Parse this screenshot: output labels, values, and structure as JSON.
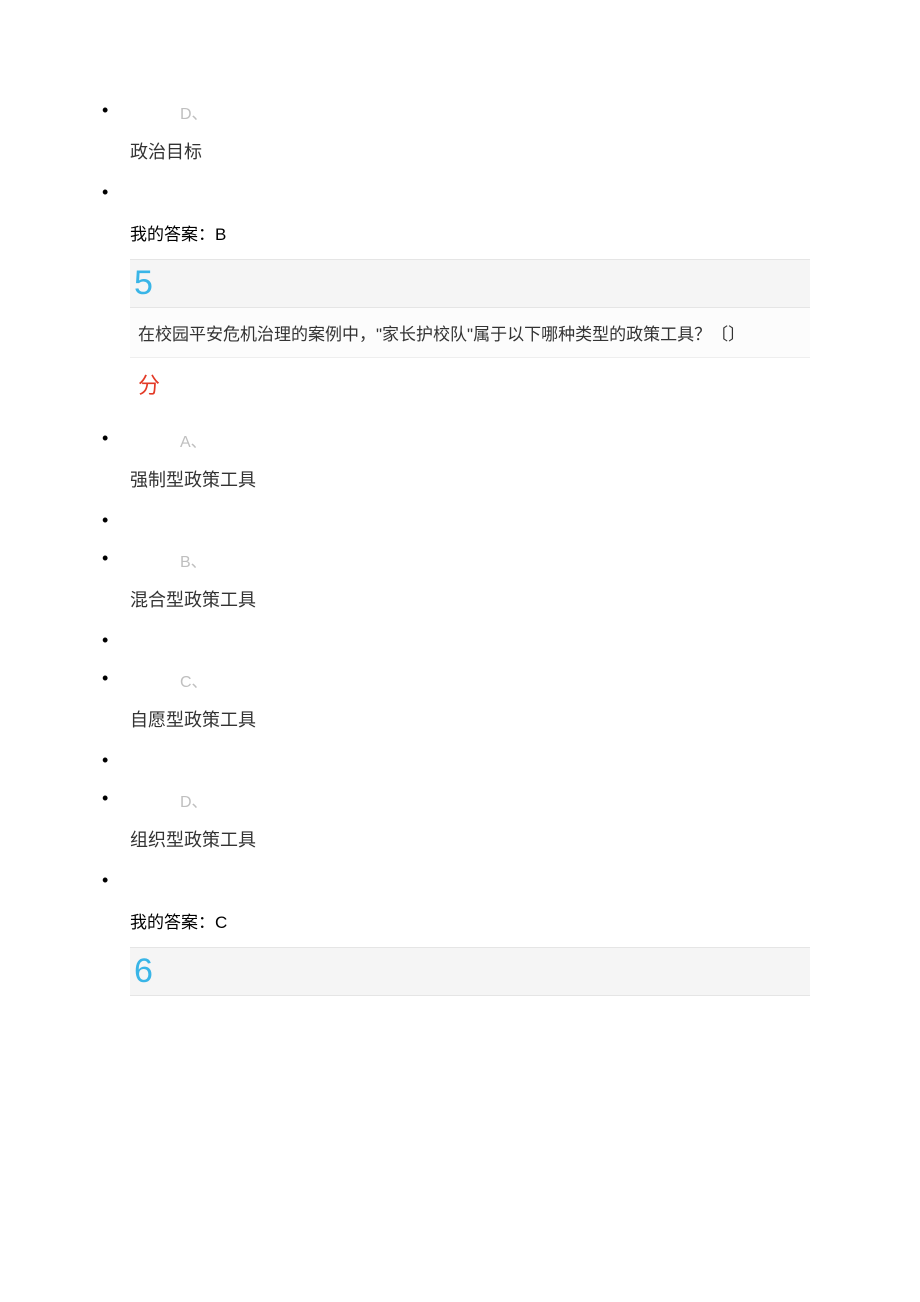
{
  "prev_tail": {
    "option_d": {
      "letter": "D、",
      "text": "政治目标"
    },
    "my_answer_label": "我的答案：",
    "my_answer_value": "B"
  },
  "q5": {
    "number": "5",
    "question": "在校园平安危机治理的案例中，\"家长护校队\"属于以下哪种类型的政策工具？〔〕",
    "score_word": "分",
    "options": {
      "a": {
        "letter": "A、",
        "text": "强制型政策工具"
      },
      "b": {
        "letter": "B、",
        "text": "混合型政策工具"
      },
      "c": {
        "letter": "C、",
        "text": "自愿型政策工具"
      },
      "d": {
        "letter": "D、",
        "text": "组织型政策工具"
      }
    },
    "my_answer_label": "我的答案：",
    "my_answer_value": "C"
  },
  "q6": {
    "number": "6"
  },
  "colors": {
    "qnum": "#39b5e7",
    "score": "#e33a27",
    "letter": "#bfbfbf",
    "text": "#333333",
    "bar_bg": "#f5f5f5",
    "bar_border": "#e5e5e5"
  }
}
